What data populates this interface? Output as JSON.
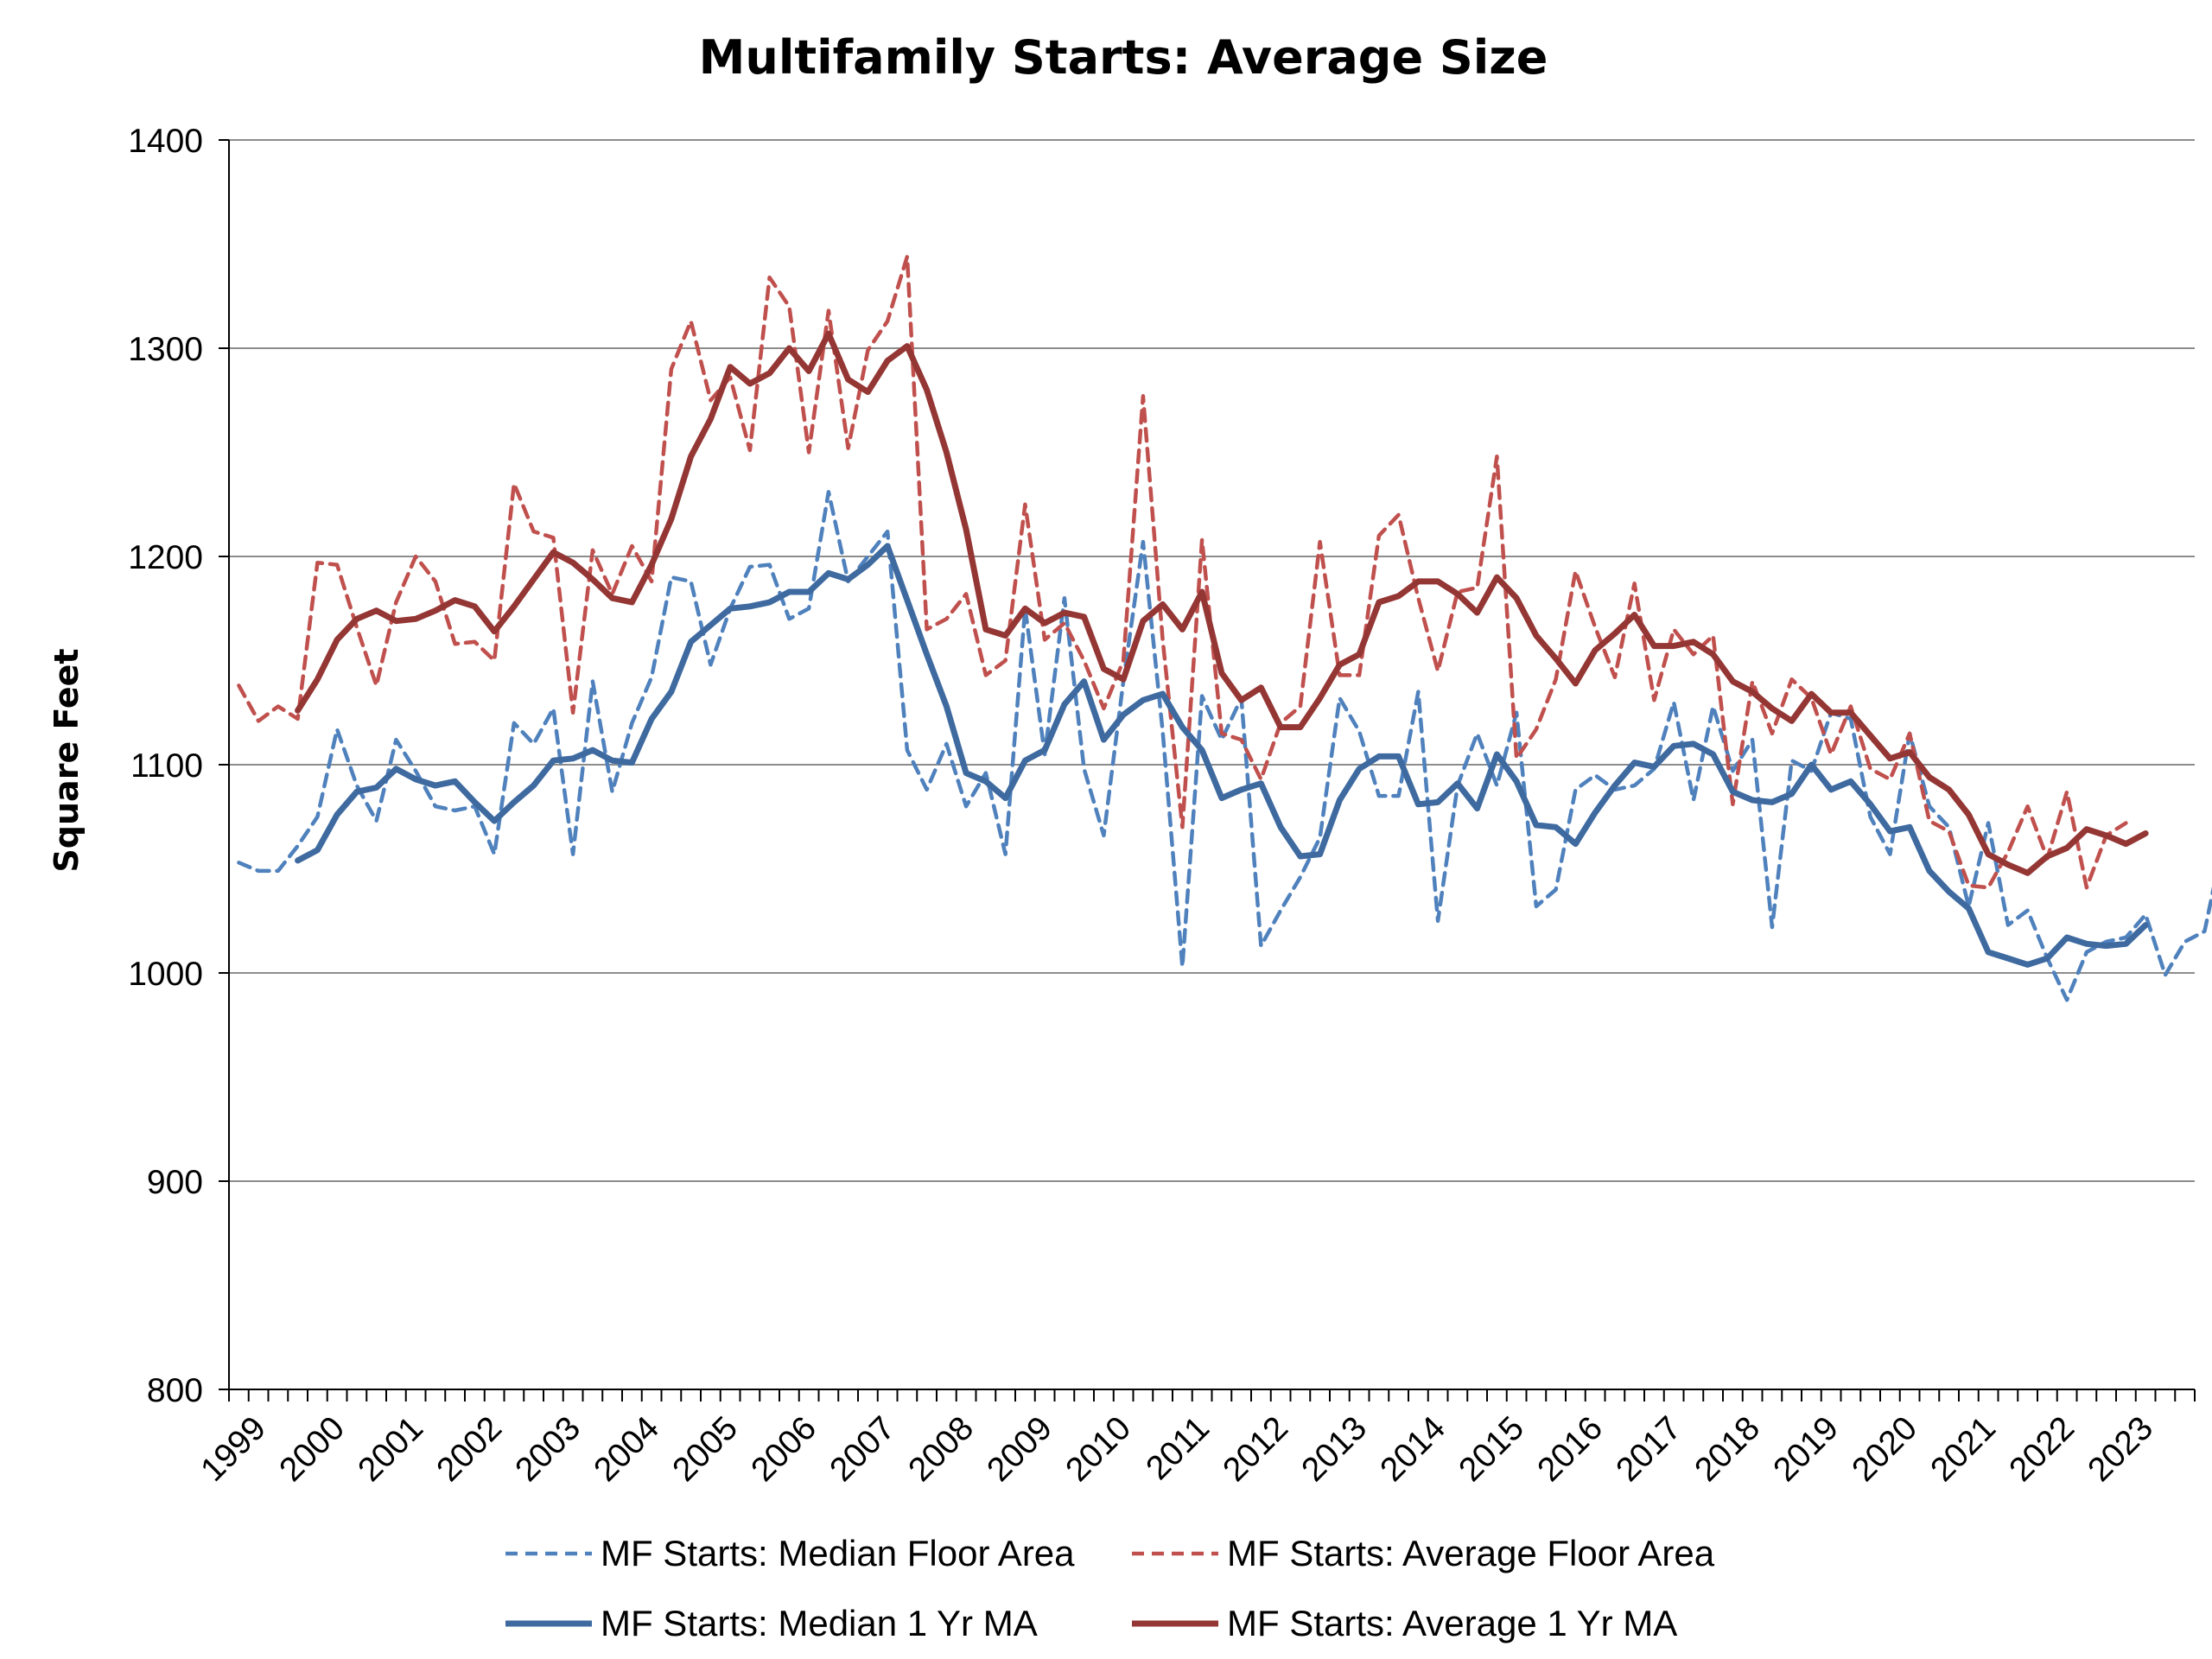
{
  "chart_data": {
    "type": "line",
    "title": "Multifamily Starts: Average Size",
    "ylabel": "Square Feet",
    "xlabel": "",
    "ylim": [
      800,
      1400
    ],
    "yticks": [
      800,
      900,
      1000,
      1100,
      1200,
      1300,
      1400
    ],
    "year_labels": [
      "1999",
      "2000",
      "2001",
      "2002",
      "2003",
      "2004",
      "2005",
      "2006",
      "2007",
      "2008",
      "2009",
      "2010",
      "2011",
      "2012",
      "2013",
      "2014",
      "2015",
      "2016",
      "2017",
      "2018",
      "2019",
      "2020",
      "2021",
      "2022",
      "2023"
    ],
    "grid": true,
    "legend_position": "bottom",
    "series": [
      {
        "name": "MF Starts: Median Floor Area",
        "style": "dashed",
        "color": "#4f81bd",
        "start_index": 0,
        "values": [
          1053,
          1049,
          1049,
          1061,
          1075,
          1117,
          1090,
          1073,
          1112,
          1097,
          1080,
          1078,
          1080,
          1057,
          1120,
          1110,
          1127,
          1057,
          1140,
          1087,
          1120,
          1142,
          1190,
          1188,
          1148,
          1175,
          1195,
          1196,
          1170,
          1175,
          1231,
          1188,
          1200,
          1212,
          1107,
          1088,
          1110,
          1080,
          1096,
          1057,
          1175,
          1105,
          1180,
          1098,
          1066,
          1140,
          1207,
          1116,
          1003,
          1133,
          1112,
          1132,
          1013,
          1030,
          1046,
          1065,
          1132,
          1116,
          1085,
          1085,
          1135,
          1025,
          1090,
          1115,
          1090,
          1125,
          1032,
          1040,
          1088,
          1095,
          1088,
          1090,
          1098,
          1130,
          1083,
          1128,
          1097,
          1112,
          1022,
          1102,
          1097,
          1125,
          1122,
          1075,
          1057,
          1115,
          1080,
          1070,
          1032,
          1072,
          1023,
          1030,
          1007,
          987,
          1010,
          1015,
          1017,
          1028,
          999,
          1015,
          1020,
          1065
        ]
      },
      {
        "name": "MF Starts: Average Floor Area",
        "style": "dashed",
        "color": "#c0504d",
        "start_index": 0,
        "values": [
          1138,
          1121,
          1128,
          1122,
          1197,
          1196,
          1166,
          1138,
          1178,
          1200,
          1188,
          1158,
          1159,
          1150,
          1235,
          1212,
          1209,
          1125,
          1203,
          1182,
          1205,
          1188,
          1290,
          1313,
          1275,
          1286,
          1251,
          1334,
          1320,
          1250,
          1318,
          1252,
          1299,
          1313,
          1344,
          1165,
          1170,
          1182,
          1143,
          1150,
          1225,
          1160,
          1168,
          1150,
          1127,
          1150,
          1277,
          1160,
          1070,
          1208,
          1115,
          1112,
          1093,
          1120,
          1128,
          1207,
          1143,
          1143,
          1210,
          1220,
          1180,
          1145,
          1183,
          1185,
          1248,
          1103,
          1117,
          1141,
          1193,
          1166,
          1142,
          1187,
          1131,
          1165,
          1153,
          1162,
          1081,
          1140,
          1115,
          1141,
          1132,
          1105,
          1128,
          1098,
          1093,
          1115,
          1073,
          1068,
          1042,
          1041,
          1058,
          1080,
          1055,
          1087,
          1041,
          1066,
          1072
        ]
      },
      {
        "name": "MF Starts: Median 1 Yr MA",
        "style": "solid",
        "color": "#3e6aa0",
        "start_index": 3,
        "values": [
          1054,
          1059,
          1076,
          1087,
          1089,
          1098,
          1093,
          1090,
          1092,
          1082,
          1073,
          1082,
          1090,
          1102,
          1103,
          1107,
          1102,
          1101,
          1122,
          1135,
          1159,
          1167,
          1175,
          1176,
          1178,
          1183,
          1183,
          1192,
          1189,
          1196,
          1205,
          1179,
          1153,
          1128,
          1096,
          1092,
          1084,
          1102,
          1107,
          1129,
          1140,
          1112,
          1124,
          1131,
          1134,
          1118,
          1107,
          1084,
          1088,
          1091,
          1070,
          1056,
          1057,
          1083,
          1098,
          1104,
          1104,
          1081,
          1082,
          1091,
          1079,
          1105,
          1092,
          1071,
          1070,
          1062,
          1077,
          1090,
          1101,
          1099,
          1109,
          1110,
          1105,
          1087,
          1083,
          1082,
          1086,
          1100,
          1088,
          1092,
          1081,
          1068,
          1070,
          1049,
          1039,
          1031,
          1010,
          1007,
          1004,
          1007,
          1017,
          1014,
          1013,
          1014,
          1023
        ]
      },
      {
        "name": "MF Starts: Average 1 Yr MA",
        "style": "solid",
        "color": "#943634",
        "start_index": 3,
        "values": [
          1126,
          1141,
          1160,
          1170,
          1174,
          1169,
          1170,
          1174,
          1179,
          1176,
          1164,
          1176,
          1189,
          1202,
          1197,
          1189,
          1180,
          1178,
          1196,
          1218,
          1248,
          1266,
          1291,
          1283,
          1288,
          1300,
          1289,
          1307,
          1285,
          1279,
          1294,
          1301,
          1280,
          1250,
          1213,
          1165,
          1162,
          1175,
          1168,
          1173,
          1171,
          1146,
          1141,
          1169,
          1177,
          1165,
          1183,
          1144,
          1131,
          1137,
          1118,
          1118,
          1132,
          1148,
          1153,
          1178,
          1181,
          1188,
          1188,
          1182,
          1173,
          1190,
          1180,
          1162,
          1151,
          1139,
          1155,
          1163,
          1172,
          1157,
          1157,
          1159,
          1153,
          1140,
          1135,
          1127,
          1121,
          1134,
          1125,
          1125,
          1114,
          1103,
          1106,
          1094,
          1088,
          1076,
          1057,
          1052,
          1048,
          1056,
          1060,
          1069,
          1066,
          1062,
          1067
        ]
      }
    ]
  }
}
